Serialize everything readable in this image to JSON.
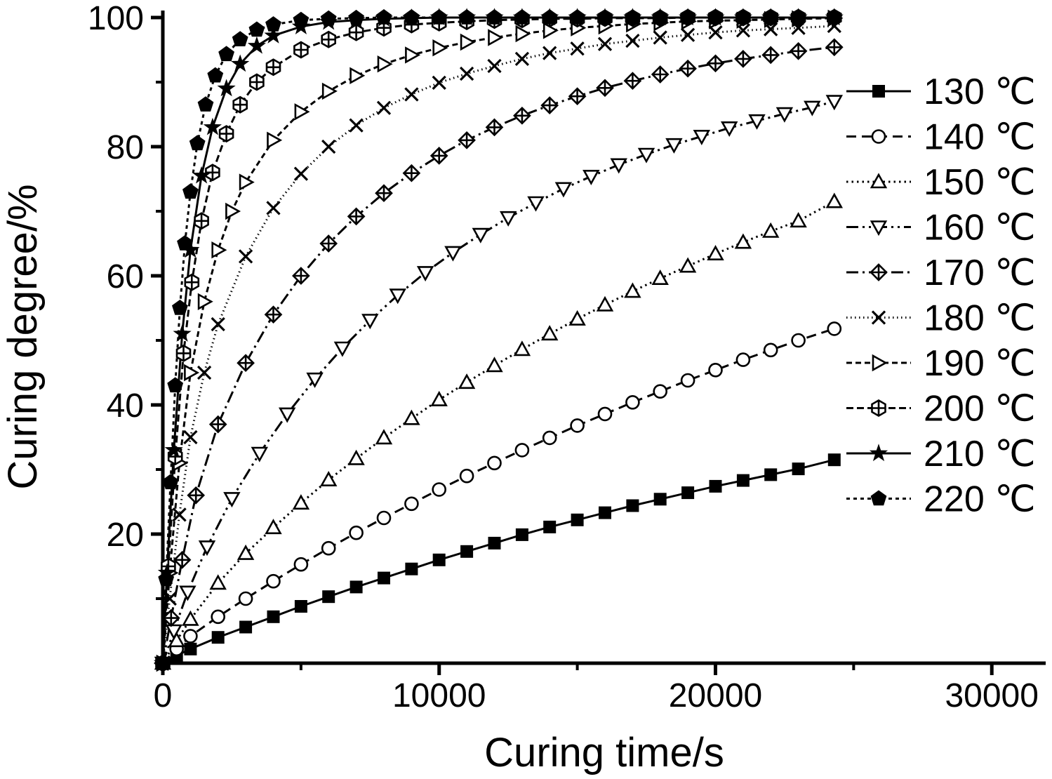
{
  "figure": {
    "background": "#ffffff",
    "axis_color": "#000000",
    "series_color": "#000000"
  },
  "chart_data": {
    "type": "line",
    "title": "",
    "xlabel": "Curing time/s",
    "ylabel": "Curing degree/%",
    "xlim": [
      0,
      31950
    ],
    "ylim": [
      0,
      100
    ],
    "grid": false,
    "legend_position": "inside-right",
    "x_ticks": [
      0,
      10000,
      20000,
      30000
    ],
    "x_tick_labels": [
      "0",
      "10000",
      "20000",
      "30000"
    ],
    "x_minor_ticks": [
      5000,
      15000,
      25000
    ],
    "y_ticks": [
      20,
      40,
      60,
      80,
      100
    ],
    "y_tick_labels": [
      "20",
      "40",
      "60",
      "80",
      "100"
    ],
    "y_minor_ticks": [
      10,
      30,
      50,
      70,
      90
    ],
    "series": [
      {
        "name": "130 ℃",
        "marker": "square-filled",
        "line": "solid",
        "points": [
          [
            0,
            0
          ],
          [
            500,
            1.2
          ],
          [
            1000,
            2.2
          ],
          [
            2000,
            4
          ],
          [
            3000,
            5.6
          ],
          [
            4000,
            7.2
          ],
          [
            5000,
            8.8
          ],
          [
            6000,
            10.3
          ],
          [
            7000,
            11.8
          ],
          [
            8000,
            13.2
          ],
          [
            9000,
            14.6
          ],
          [
            10000,
            16
          ],
          [
            11000,
            17.3
          ],
          [
            12000,
            18.6
          ],
          [
            13000,
            19.9
          ],
          [
            14000,
            21.1
          ],
          [
            15000,
            22.2
          ],
          [
            16000,
            23.3
          ],
          [
            17000,
            24.4
          ],
          [
            18000,
            25.4
          ],
          [
            19000,
            26.4
          ],
          [
            20000,
            27.4
          ],
          [
            21000,
            28.3
          ],
          [
            22000,
            29.2
          ],
          [
            23000,
            30.1
          ],
          [
            24300,
            31.5
          ]
        ]
      },
      {
        "name": "140 ℃",
        "marker": "circle-open",
        "line": "dash",
        "points": [
          [
            0,
            0
          ],
          [
            500,
            2.2
          ],
          [
            1000,
            4.2
          ],
          [
            2000,
            7.2
          ],
          [
            3000,
            10
          ],
          [
            4000,
            12.7
          ],
          [
            5000,
            15.3
          ],
          [
            6000,
            17.8
          ],
          [
            7000,
            20.2
          ],
          [
            8000,
            22.5
          ],
          [
            9000,
            24.7
          ],
          [
            10000,
            26.9
          ],
          [
            11000,
            29
          ],
          [
            12000,
            31
          ],
          [
            13000,
            33
          ],
          [
            14000,
            34.9
          ],
          [
            15000,
            36.8
          ],
          [
            16000,
            38.6
          ],
          [
            17000,
            40.4
          ],
          [
            18000,
            42.1
          ],
          [
            19000,
            43.8
          ],
          [
            20000,
            45.4
          ],
          [
            21000,
            47
          ],
          [
            22000,
            48.5
          ],
          [
            23000,
            50
          ],
          [
            24300,
            51.8
          ]
        ]
      },
      {
        "name": "150 ℃",
        "marker": "triangle-up-open",
        "line": "dot",
        "points": [
          [
            0,
            0
          ],
          [
            500,
            3.5
          ],
          [
            1000,
            6.8
          ],
          [
            2000,
            12.4
          ],
          [
            3000,
            17
          ],
          [
            4000,
            21
          ],
          [
            5000,
            24.8
          ],
          [
            6000,
            28.4
          ],
          [
            7000,
            31.7
          ],
          [
            8000,
            34.9
          ],
          [
            9000,
            37.9
          ],
          [
            10000,
            40.8
          ],
          [
            11000,
            43.5
          ],
          [
            12000,
            46.1
          ],
          [
            13000,
            48.6
          ],
          [
            14000,
            51
          ],
          [
            15000,
            53.3
          ],
          [
            16000,
            55.5
          ],
          [
            17000,
            57.6
          ],
          [
            18000,
            59.6
          ],
          [
            19000,
            61.5
          ],
          [
            20000,
            63.4
          ],
          [
            21000,
            65.2
          ],
          [
            22000,
            66.9
          ],
          [
            23000,
            68.5
          ],
          [
            24300,
            71.5
          ]
        ]
      },
      {
        "name": "160 ℃",
        "marker": "triangle-down-open",
        "line": "dashdotdot",
        "points": [
          [
            0,
            0
          ],
          [
            400,
            5
          ],
          [
            900,
            11
          ],
          [
            1600,
            18
          ],
          [
            2500,
            25.5
          ],
          [
            3500,
            32.5
          ],
          [
            4500,
            38.6
          ],
          [
            5500,
            44
          ],
          [
            6500,
            48.8
          ],
          [
            7500,
            53.1
          ],
          [
            8500,
            57
          ],
          [
            9500,
            60.5
          ],
          [
            10500,
            63.6
          ],
          [
            11500,
            66.4
          ],
          [
            12500,
            69
          ],
          [
            13500,
            71.3
          ],
          [
            14500,
            73.5
          ],
          [
            15500,
            75.4
          ],
          [
            16500,
            77.2
          ],
          [
            17500,
            78.8
          ],
          [
            18500,
            80.3
          ],
          [
            19500,
            81.6
          ],
          [
            20500,
            82.9
          ],
          [
            21500,
            84
          ],
          [
            22500,
            85.1
          ],
          [
            23500,
            86.1
          ],
          [
            24300,
            87
          ]
        ]
      },
      {
        "name": "170 ℃",
        "marker": "diamond-cross-open",
        "line": "dashdot",
        "points": [
          [
            0,
            0
          ],
          [
            300,
            7
          ],
          [
            700,
            16
          ],
          [
            1200,
            26
          ],
          [
            2000,
            37
          ],
          [
            3000,
            46.5
          ],
          [
            4000,
            54
          ],
          [
            5000,
            60
          ],
          [
            6000,
            65
          ],
          [
            7000,
            69.2
          ],
          [
            8000,
            72.8
          ],
          [
            9000,
            75.9
          ],
          [
            10000,
            78.6
          ],
          [
            11000,
            81
          ],
          [
            12000,
            83
          ],
          [
            13000,
            84.8
          ],
          [
            14000,
            86.4
          ],
          [
            15000,
            87.8
          ],
          [
            16000,
            89.1
          ],
          [
            17000,
            90.2
          ],
          [
            18000,
            91.2
          ],
          [
            19000,
            92.1
          ],
          [
            20000,
            92.9
          ],
          [
            21000,
            93.6
          ],
          [
            22000,
            94.2
          ],
          [
            23000,
            94.8
          ],
          [
            24300,
            95.4
          ]
        ]
      },
      {
        "name": "180 ℃",
        "marker": "x-cross",
        "line": "dot2",
        "points": [
          [
            0,
            0
          ],
          [
            250,
            10
          ],
          [
            600,
            23
          ],
          [
            1000,
            35
          ],
          [
            1500,
            45
          ],
          [
            2000,
            52.5
          ],
          [
            3000,
            63
          ],
          [
            4000,
            70.5
          ],
          [
            5000,
            75.8
          ],
          [
            6000,
            80
          ],
          [
            7000,
            83.3
          ],
          [
            8000,
            86
          ],
          [
            9000,
            88.1
          ],
          [
            10000,
            89.9
          ],
          [
            11000,
            91.3
          ],
          [
            12000,
            92.5
          ],
          [
            13000,
            93.6
          ],
          [
            14000,
            94.5
          ],
          [
            15000,
            95.2
          ],
          [
            16000,
            95.9
          ],
          [
            17000,
            96.4
          ],
          [
            18000,
            96.9
          ],
          [
            19000,
            97.3
          ],
          [
            20000,
            97.7
          ],
          [
            21000,
            98
          ],
          [
            22000,
            98.2
          ],
          [
            23000,
            98.4
          ],
          [
            24300,
            98.7
          ]
        ]
      },
      {
        "name": "190 ℃",
        "marker": "triangle-right-open",
        "line": "shortdash",
        "points": [
          [
            0,
            0
          ],
          [
            250,
            14
          ],
          [
            600,
            31
          ],
          [
            1000,
            45
          ],
          [
            1500,
            56
          ],
          [
            2000,
            64
          ],
          [
            2500,
            70
          ],
          [
            3000,
            74.5
          ],
          [
            4000,
            81
          ],
          [
            5000,
            85.4
          ],
          [
            6000,
            88.6
          ],
          [
            7000,
            91
          ],
          [
            8000,
            92.8
          ],
          [
            9000,
            94.2
          ],
          [
            10000,
            95.3
          ],
          [
            11000,
            96.2
          ],
          [
            12000,
            96.9
          ],
          [
            13000,
            97.5
          ],
          [
            14000,
            98
          ],
          [
            15000,
            98.4
          ],
          [
            16000,
            98.7
          ],
          [
            17000,
            99
          ],
          [
            18000,
            99.2
          ],
          [
            19000,
            99.4
          ],
          [
            20000,
            99.5
          ],
          [
            21000,
            99.6
          ],
          [
            22000,
            99.7
          ],
          [
            23000,
            99.8
          ],
          [
            24300,
            99.9
          ]
        ]
      },
      {
        "name": "200 ℃",
        "marker": "hexagon-cross-open",
        "line": "dash2",
        "points": [
          [
            0,
            0
          ],
          [
            200,
            15
          ],
          [
            450,
            32
          ],
          [
            750,
            48
          ],
          [
            1050,
            59
          ],
          [
            1400,
            68.5
          ],
          [
            1800,
            76
          ],
          [
            2300,
            82
          ],
          [
            2800,
            86.5
          ],
          [
            3400,
            90
          ],
          [
            4000,
            92.3
          ],
          [
            5000,
            95
          ],
          [
            6000,
            96.6
          ],
          [
            7000,
            97.7
          ],
          [
            8000,
            98.4
          ],
          [
            9000,
            98.9
          ],
          [
            10000,
            99.2
          ],
          [
            11000,
            99.4
          ],
          [
            12000,
            99.6
          ],
          [
            13000,
            99.7
          ],
          [
            14000,
            99.8
          ],
          [
            15000,
            99.8
          ],
          [
            16000,
            99.9
          ],
          [
            17000,
            99.9
          ],
          [
            18000,
            99.9
          ],
          [
            19000,
            100
          ],
          [
            20000,
            100
          ],
          [
            21000,
            100
          ],
          [
            22000,
            100
          ],
          [
            23000,
            100
          ],
          [
            24300,
            100
          ]
        ]
      },
      {
        "name": "210 ℃",
        "marker": "star-filled",
        "line": "solid",
        "points": [
          [
            0,
            0
          ],
          [
            150,
            14
          ],
          [
            400,
            33
          ],
          [
            700,
            51
          ],
          [
            1000,
            64
          ],
          [
            1400,
            75.5
          ],
          [
            1800,
            83
          ],
          [
            2300,
            89
          ],
          [
            2800,
            92.8
          ],
          [
            3400,
            95.6
          ],
          [
            4000,
            97.2
          ],
          [
            5000,
            98.6
          ],
          [
            6000,
            99.3
          ],
          [
            7000,
            99.6
          ],
          [
            8000,
            99.8
          ],
          [
            9000,
            99.9
          ],
          [
            10000,
            100
          ],
          [
            11000,
            100
          ],
          [
            12000,
            100
          ],
          [
            13000,
            100
          ],
          [
            14000,
            100
          ],
          [
            15000,
            100
          ],
          [
            16000,
            100
          ],
          [
            17000,
            100
          ],
          [
            18000,
            100
          ],
          [
            19000,
            100
          ],
          [
            20000,
            100
          ],
          [
            21000,
            100
          ],
          [
            22000,
            100
          ],
          [
            23000,
            100
          ],
          [
            24300,
            100
          ]
        ]
      },
      {
        "name": "220 ℃",
        "marker": "pentagon-filled",
        "line": "dash3",
        "points": [
          [
            0,
            0
          ],
          [
            120,
            13
          ],
          [
            280,
            28
          ],
          [
            450,
            43
          ],
          [
            620,
            55
          ],
          [
            800,
            65
          ],
          [
            1000,
            73
          ],
          [
            1250,
            80.5
          ],
          [
            1550,
            86.5
          ],
          [
            1900,
            91
          ],
          [
            2300,
            94.3
          ],
          [
            2800,
            96.6
          ],
          [
            3400,
            98.1
          ],
          [
            4000,
            98.9
          ],
          [
            5000,
            99.6
          ],
          [
            6000,
            99.8
          ],
          [
            7000,
            99.9
          ],
          [
            8000,
            100
          ],
          [
            9000,
            100
          ],
          [
            10000,
            100
          ],
          [
            11000,
            100
          ],
          [
            12000,
            100
          ],
          [
            13000,
            100
          ],
          [
            14000,
            100
          ],
          [
            15000,
            100
          ],
          [
            16000,
            100
          ],
          [
            17000,
            100
          ],
          [
            18000,
            100
          ],
          [
            19000,
            100
          ],
          [
            20000,
            100
          ],
          [
            21000,
            100
          ],
          [
            22000,
            100
          ],
          [
            23000,
            100
          ],
          [
            24300,
            100
          ]
        ]
      }
    ]
  }
}
